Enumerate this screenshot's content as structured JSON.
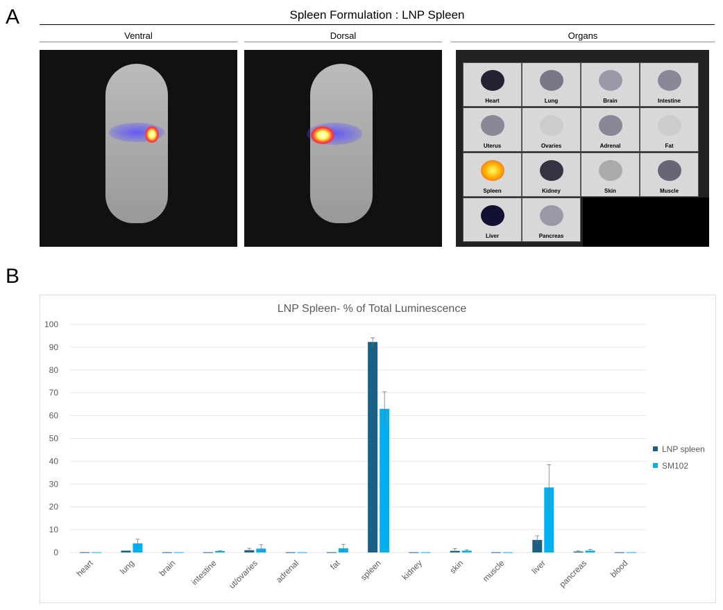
{
  "panel_a": {
    "letter": "A",
    "title": "Spleen Formulation : LNP Spleen",
    "views": [
      "Ventral",
      "Dorsal",
      "Organs"
    ],
    "organ_labels": [
      "Heart",
      "Lung",
      "Brain",
      "Intestine",
      "Uterus",
      "Ovaries",
      "Adrenal",
      "Fat",
      "Spleen",
      "Kidney",
      "Skin",
      "Muscle",
      "Liver",
      "Pancreas"
    ]
  },
  "panel_b": {
    "letter": "B"
  },
  "chart_data": {
    "type": "bar",
    "title": "LNP Spleen- % of Total Luminescence",
    "xlabel": "",
    "ylabel": "",
    "ylim": [
      0,
      100
    ],
    "yticks": [
      0,
      10,
      20,
      30,
      40,
      50,
      60,
      70,
      80,
      90,
      100
    ],
    "grid": true,
    "legend": "right",
    "categories": [
      "heart",
      "lung",
      "brain",
      "intestine",
      "ut/ovaries",
      "adrenal",
      "fat",
      "spleen",
      "kidney",
      "skin",
      "muscle",
      "liver",
      "pancreas",
      "blood"
    ],
    "series": [
      {
        "name": "LNP spleen",
        "color": "#1a5f84",
        "values": [
          0.1,
          0.8,
          0.1,
          0.1,
          1.0,
          0.1,
          0.1,
          92.3,
          0.1,
          0.7,
          0.1,
          5.5,
          0.4,
          0.1
        ],
        "errors": [
          0,
          0,
          0,
          0,
          0.8,
          0,
          0,
          1.8,
          0,
          1.0,
          0,
          1.8,
          0.3,
          0
        ]
      },
      {
        "name": "SM102",
        "color": "#00b0f0",
        "values": [
          0.1,
          4.0,
          0.1,
          0.6,
          1.7,
          0.1,
          1.8,
          63.0,
          0.1,
          0.8,
          0.1,
          28.5,
          0.8,
          0.1
        ],
        "errors": [
          0,
          1.8,
          0,
          0.2,
          1.7,
          0,
          1.8,
          7.5,
          0,
          0.4,
          0,
          10.0,
          0.6,
          0
        ]
      }
    ]
  }
}
